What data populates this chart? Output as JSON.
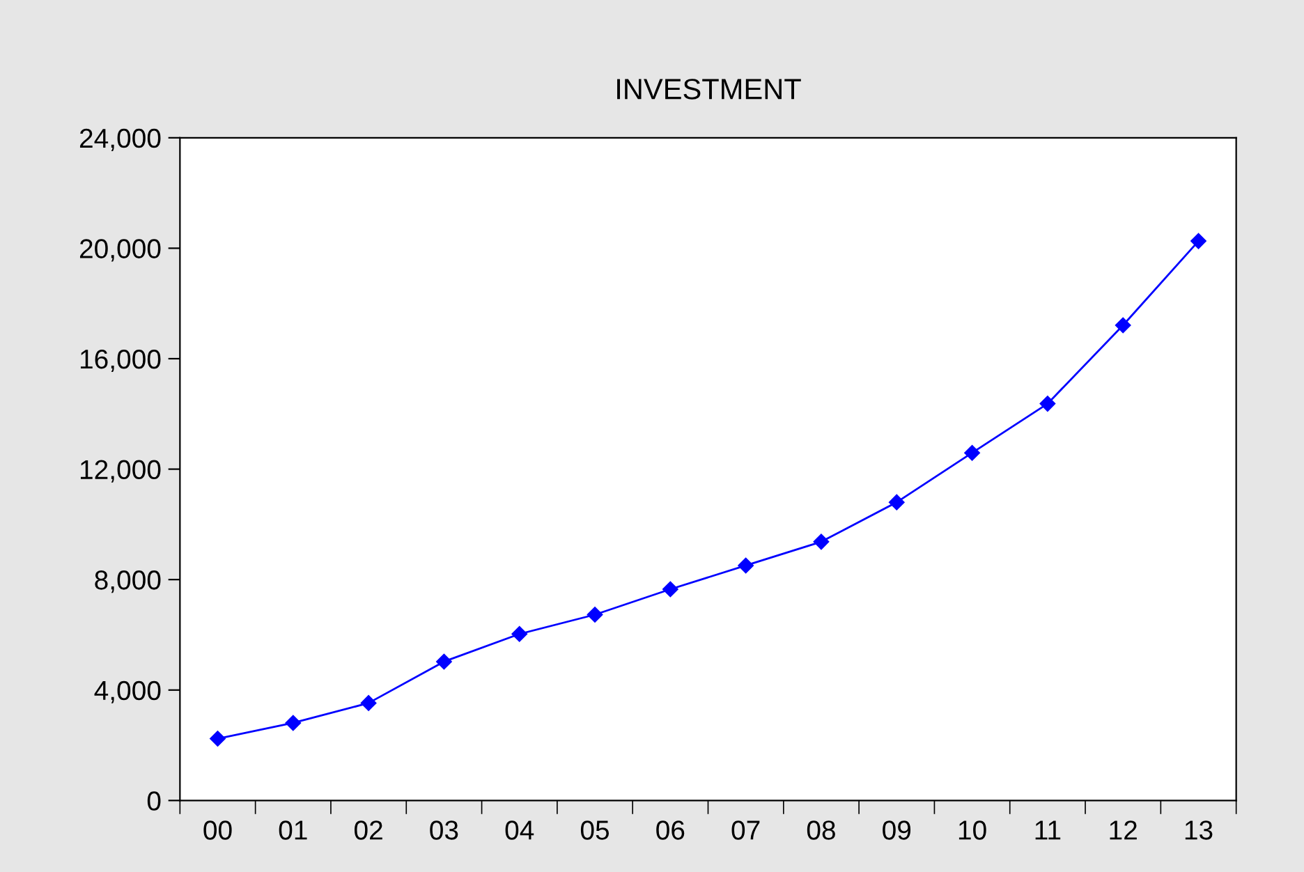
{
  "chart_data": {
    "type": "line",
    "title": "INVESTMENT",
    "categories": [
      "00",
      "01",
      "02",
      "03",
      "04",
      "05",
      "06",
      "07",
      "08",
      "09",
      "10",
      "11",
      "12",
      "13"
    ],
    "series": [
      {
        "color": "#0000ff",
        "values": [
          2240,
          2810,
          3530,
          5030,
          6030,
          6730,
          7650,
          8510,
          9370,
          10800,
          12590,
          14370,
          17210,
          20260
        ]
      }
    ],
    "ylim": [
      0,
      24000
    ],
    "yticks": [
      {
        "value": 0,
        "label": "0"
      },
      {
        "value": 4000,
        "label": "4,000"
      },
      {
        "value": 8000,
        "label": "8,000"
      },
      {
        "value": 12000,
        "label": "12,000"
      },
      {
        "value": 16000,
        "label": "16,000"
      },
      {
        "value": 20000,
        "label": "20,000"
      },
      {
        "value": 24000,
        "label": "24,000"
      }
    ],
    "grid": false,
    "marker": "diamond",
    "line_style": "solid"
  }
}
